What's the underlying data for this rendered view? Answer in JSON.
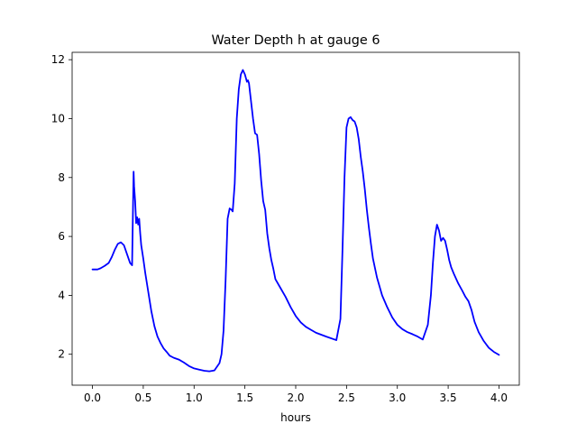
{
  "chart_data": {
    "type": "line",
    "title": "Water Depth h at gauge 6",
    "xlabel": "hours",
    "ylabel": "",
    "xlim": [
      -0.2,
      4.2
    ],
    "ylim": [
      0.95,
      12.25
    ],
    "xticks": [
      0.0,
      0.5,
      1.0,
      1.5,
      2.0,
      2.5,
      3.0,
      3.5,
      4.0
    ],
    "xtick_labels": [
      "0.0",
      "0.5",
      "1.0",
      "1.5",
      "2.0",
      "2.5",
      "3.0",
      "3.5",
      "4.0"
    ],
    "yticks": [
      2,
      4,
      6,
      8,
      10,
      12
    ],
    "ytick_labels": [
      "2",
      "4",
      "6",
      "8",
      "10",
      "12"
    ],
    "grid": false,
    "series": [
      {
        "color": "#0000ff",
        "x": [
          0.0,
          0.05,
          0.08,
          0.12,
          0.16,
          0.19,
          0.22,
          0.25,
          0.28,
          0.31,
          0.34,
          0.37,
          0.39,
          0.4,
          0.405,
          0.41,
          0.42,
          0.43,
          0.44,
          0.45,
          0.46,
          0.47,
          0.48,
          0.5,
          0.52,
          0.55,
          0.58,
          0.61,
          0.64,
          0.67,
          0.7,
          0.73,
          0.76,
          0.8,
          0.85,
          0.9,
          0.95,
          1.0,
          1.05,
          1.1,
          1.15,
          1.2,
          1.25,
          1.27,
          1.29,
          1.31,
          1.33,
          1.35,
          1.37,
          1.38,
          1.4,
          1.42,
          1.44,
          1.46,
          1.48,
          1.5,
          1.52,
          1.53,
          1.54,
          1.56,
          1.58,
          1.6,
          1.62,
          1.64,
          1.66,
          1.68,
          1.7,
          1.72,
          1.74,
          1.76,
          1.78,
          1.8,
          1.85,
          1.9,
          1.95,
          2.0,
          2.05,
          2.1,
          2.15,
          2.2,
          2.3,
          2.4,
          2.44,
          2.46,
          2.48,
          2.5,
          2.52,
          2.54,
          2.56,
          2.58,
          2.6,
          2.62,
          2.64,
          2.66,
          2.68,
          2.7,
          2.72,
          2.74,
          2.76,
          2.8,
          2.85,
          2.9,
          2.95,
          3.0,
          3.05,
          3.1,
          3.15,
          3.2,
          3.25,
          3.3,
          3.33,
          3.35,
          3.37,
          3.39,
          3.41,
          3.43,
          3.45,
          3.47,
          3.49,
          3.51,
          3.53,
          3.56,
          3.6,
          3.64,
          3.67,
          3.7,
          3.73,
          3.76,
          3.8,
          3.85,
          3.9,
          3.95,
          4.0
        ],
        "y": [
          4.88,
          4.88,
          4.92,
          5.0,
          5.1,
          5.3,
          5.55,
          5.75,
          5.8,
          5.7,
          5.4,
          5.1,
          5.02,
          7.2,
          8.2,
          7.7,
          7.2,
          6.45,
          6.65,
          6.4,
          6.6,
          6.1,
          5.7,
          5.25,
          4.75,
          4.1,
          3.45,
          2.95,
          2.6,
          2.38,
          2.2,
          2.08,
          1.95,
          1.88,
          1.82,
          1.72,
          1.6,
          1.52,
          1.48,
          1.44,
          1.42,
          1.45,
          1.7,
          2.0,
          2.8,
          4.5,
          6.6,
          6.95,
          6.9,
          6.85,
          7.8,
          10.0,
          11.0,
          11.5,
          11.65,
          11.5,
          11.25,
          11.3,
          11.2,
          10.6,
          10.0,
          9.5,
          9.45,
          8.8,
          7.9,
          7.2,
          6.9,
          6.1,
          5.6,
          5.2,
          4.9,
          4.55,
          4.25,
          3.95,
          3.6,
          3.3,
          3.08,
          2.93,
          2.83,
          2.73,
          2.6,
          2.48,
          3.2,
          5.5,
          8.0,
          9.7,
          10.0,
          10.05,
          9.95,
          9.9,
          9.7,
          9.3,
          8.7,
          8.2,
          7.6,
          6.9,
          6.3,
          5.75,
          5.25,
          4.6,
          4.0,
          3.6,
          3.25,
          3.0,
          2.85,
          2.75,
          2.68,
          2.6,
          2.5,
          3.0,
          4.0,
          5.1,
          6.0,
          6.4,
          6.2,
          5.85,
          5.95,
          5.85,
          5.55,
          5.2,
          4.95,
          4.7,
          4.4,
          4.15,
          3.95,
          3.8,
          3.5,
          3.1,
          2.75,
          2.45,
          2.22,
          2.08,
          1.98
        ]
      }
    ]
  }
}
